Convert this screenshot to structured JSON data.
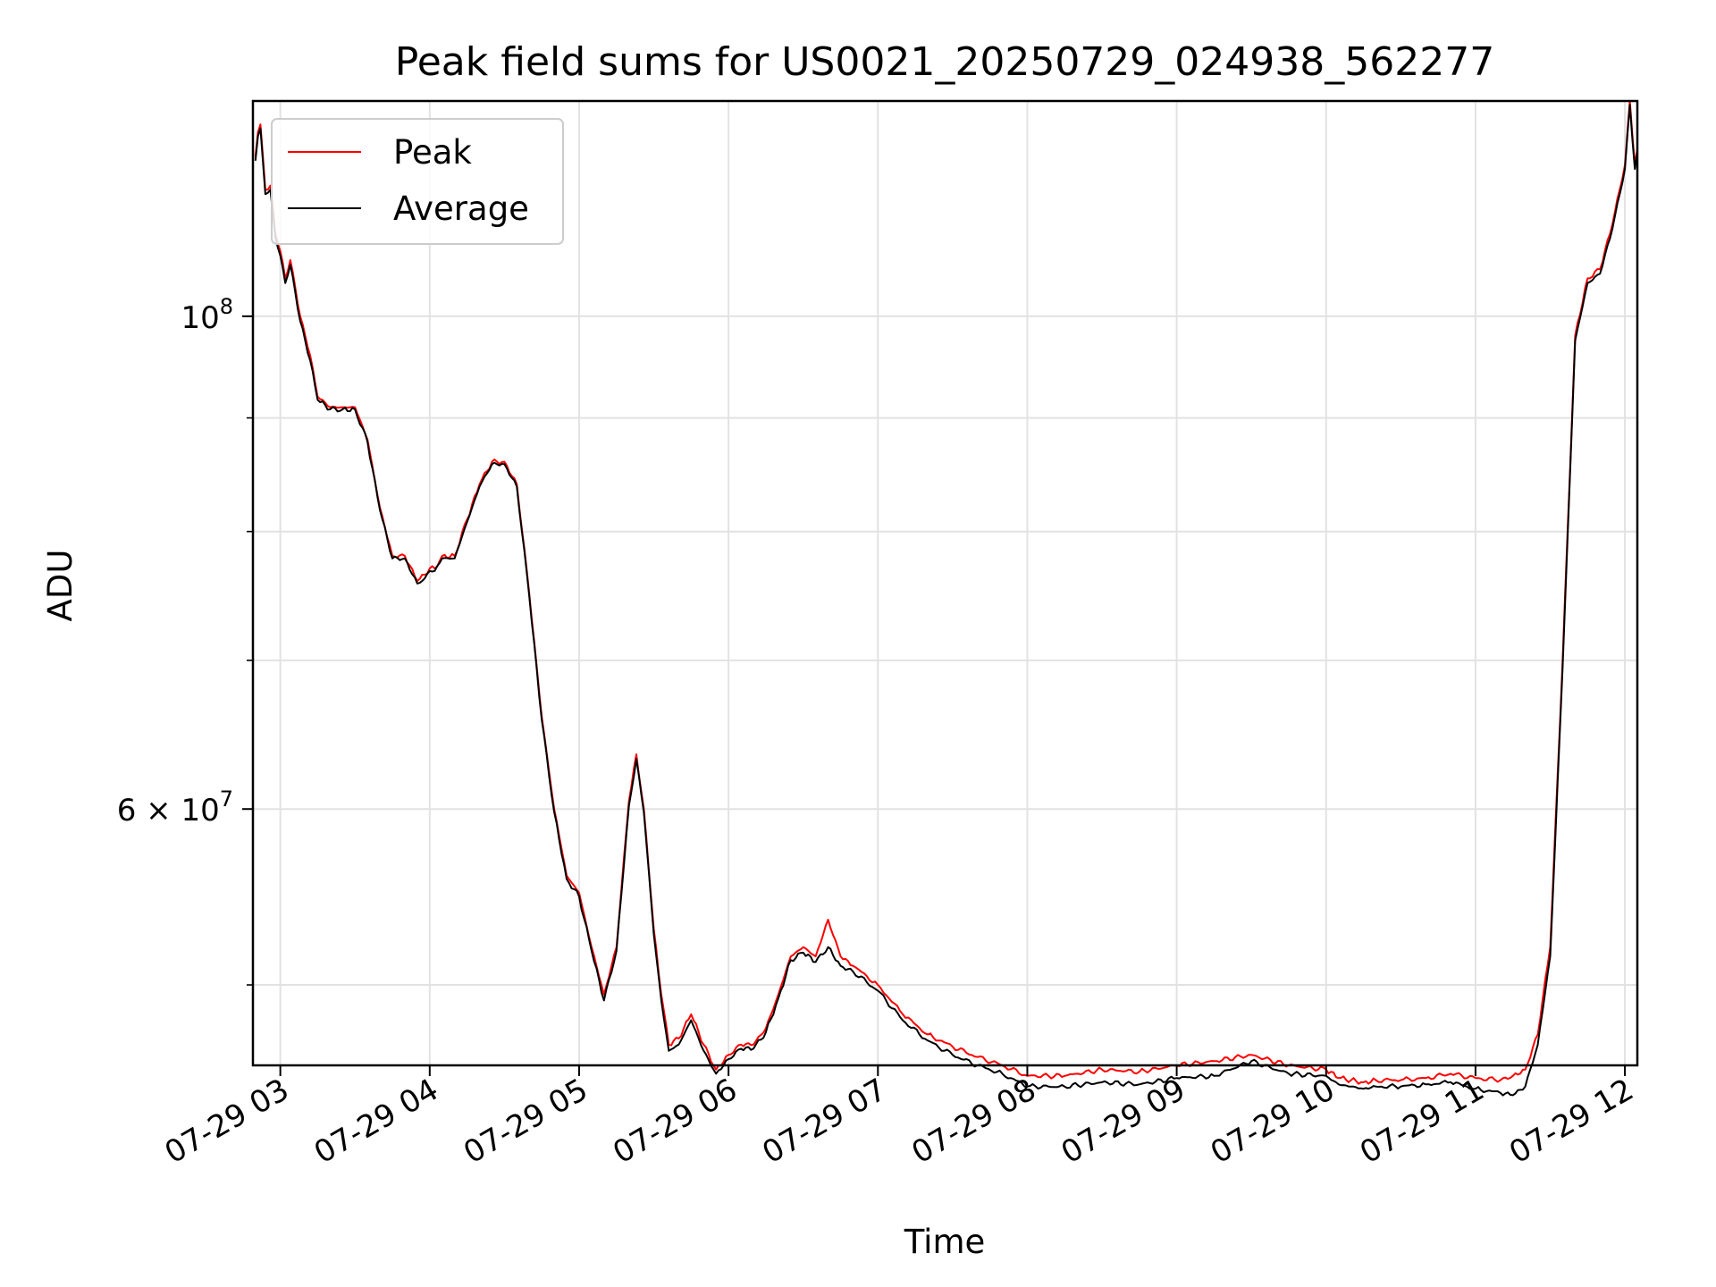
{
  "chart_data": {
    "type": "line",
    "title": "Peak field sums for US0021_20250729_024938_562277",
    "xlabel": "Time",
    "ylabel": "ADU",
    "y_scale": "log",
    "grid": true,
    "legend_position": "top-left",
    "x_ticks": [
      "07-29 03",
      "07-29 04",
      "07-29 05",
      "07-29 06",
      "07-29 07",
      "07-29 08",
      "07-29 09",
      "07-29 10",
      "07-29 11",
      "07-29 12"
    ],
    "y_major_ticks": [
      {
        "value": 100000000,
        "mantissa": "",
        "base": "10",
        "exp": "8"
      },
      {
        "value": 60000000,
        "mantissa": "6 × ",
        "base": "10",
        "exp": "7"
      }
    ],
    "y_minor_ticks": [
      50000000,
      70000000,
      80000000,
      90000000
    ],
    "xlim": [
      "2025-07-29 02:49",
      "2025-07-29 12:05"
    ],
    "ylim": [
      46000000,
      125000000
    ],
    "series": [
      {
        "name": "Peak",
        "color": "#ff0000",
        "x": [
          "2025-07-29 02:50",
          "2025-07-29 02:51",
          "2025-07-29 02:52",
          "2025-07-29 02:54",
          "2025-07-29 02:56",
          "2025-07-29 02:58",
          "2025-07-29 03:00",
          "2025-07-29 03:02",
          "2025-07-29 03:04",
          "2025-07-29 03:06",
          "2025-07-29 03:08",
          "2025-07-29 03:10",
          "2025-07-29 03:12",
          "2025-07-29 03:15",
          "2025-07-29 03:20",
          "2025-07-29 03:25",
          "2025-07-29 03:30",
          "2025-07-29 03:35",
          "2025-07-29 03:40",
          "2025-07-29 03:45",
          "2025-07-29 03:50",
          "2025-07-29 03:55",
          "2025-07-29 03:58",
          "2025-07-29 04:00",
          "2025-07-29 04:02",
          "2025-07-29 04:05",
          "2025-07-29 04:10",
          "2025-07-29 04:15",
          "2025-07-29 04:20",
          "2025-07-29 04:25",
          "2025-07-29 04:30",
          "2025-07-29 04:35",
          "2025-07-29 04:40",
          "2025-07-29 04:45",
          "2025-07-29 04:50",
          "2025-07-29 04:55",
          "2025-07-29 05:00",
          "2025-07-29 05:05",
          "2025-07-29 05:10",
          "2025-07-29 05:15",
          "2025-07-29 05:20",
          "2025-07-29 05:23",
          "2025-07-29 05:26",
          "2025-07-29 05:30",
          "2025-07-29 05:33",
          "2025-07-29 05:36",
          "2025-07-29 05:40",
          "2025-07-29 05:45",
          "2025-07-29 05:50",
          "2025-07-29 05:55",
          "2025-07-29 06:00",
          "2025-07-29 06:05",
          "2025-07-29 06:10",
          "2025-07-29 06:15",
          "2025-07-29 06:20",
          "2025-07-29 06:25",
          "2025-07-29 06:30",
          "2025-07-29 06:35",
          "2025-07-29 06:40",
          "2025-07-29 06:45",
          "2025-07-29 06:50",
          "2025-07-29 07:00",
          "2025-07-29 07:10",
          "2025-07-29 07:20",
          "2025-07-29 07:30",
          "2025-07-29 07:40",
          "2025-07-29 07:50",
          "2025-07-29 08:00",
          "2025-07-29 08:15",
          "2025-07-29 08:30",
          "2025-07-29 08:45",
          "2025-07-29 09:00",
          "2025-07-29 09:15",
          "2025-07-29 09:30",
          "2025-07-29 09:45",
          "2025-07-29 10:00",
          "2025-07-29 10:05",
          "2025-07-29 10:10",
          "2025-07-29 10:15",
          "2025-07-29 10:20",
          "2025-07-29 10:30",
          "2025-07-29 10:40",
          "2025-07-29 10:50",
          "2025-07-29 11:00",
          "2025-07-29 11:10",
          "2025-07-29 11:15",
          "2025-07-29 11:20",
          "2025-07-29 11:25",
          "2025-07-29 11:30",
          "2025-07-29 11:35",
          "2025-07-29 11:40",
          "2025-07-29 11:45",
          "2025-07-29 11:50",
          "2025-07-29 11:55",
          "2025-07-29 12:00",
          "2025-07-29 12:02",
          "2025-07-29 12:04",
          "2025-07-29 12:05"
        ],
        "y": [
          118000000,
          121000000,
          122000000,
          114000000,
          114500000,
          109000000,
          107000000,
          104000000,
          106000000,
          103000000,
          100000000,
          98000000,
          96000000,
          92000000,
          91000000,
          91000000,
          91000000,
          88000000,
          82000000,
          78000000,
          78000000,
          76000000,
          76500000,
          77000000,
          77000000,
          78000000,
          78000000,
          81000000,
          84000000,
          86000000,
          86000000,
          84000000,
          75000000,
          66000000,
          60000000,
          56000000,
          55000000,
          52000000,
          49500000,
          52000000,
          60500000,
          63500000,
          60000000,
          53000000,
          49500000,
          47000000,
          47300000,
          48500000,
          47000000,
          45800000,
          46500000,
          47000000,
          47000000,
          47800000,
          49500000,
          51500000,
          52000000,
          51500000,
          53500000,
          51500000,
          51000000,
          50000000,
          48500000,
          47500000,
          46900000,
          46400000,
          46000000,
          45500000,
          45500000,
          45800000,
          45700000,
          46000000,
          46200000,
          46500000,
          46000000,
          45800000,
          45400000,
          45300000,
          45200000,
          45300000,
          45300000,
          45400000,
          45600000,
          45400000,
          45300000,
          45500000,
          45800000,
          47500000,
          52000000,
          70000000,
          98000000,
          104000000,
          105000000,
          110000000,
          117000000,
          125000000,
          117000000,
          119000000
        ]
      },
      {
        "name": "Average",
        "color": "#000000",
        "x": [
          "2025-07-29 02:50",
          "2025-07-29 02:51",
          "2025-07-29 02:52",
          "2025-07-29 02:54",
          "2025-07-29 02:56",
          "2025-07-29 02:58",
          "2025-07-29 03:00",
          "2025-07-29 03:02",
          "2025-07-29 03:04",
          "2025-07-29 03:06",
          "2025-07-29 03:08",
          "2025-07-29 03:10",
          "2025-07-29 03:12",
          "2025-07-29 03:15",
          "2025-07-29 03:20",
          "2025-07-29 03:25",
          "2025-07-29 03:30",
          "2025-07-29 03:35",
          "2025-07-29 03:40",
          "2025-07-29 03:45",
          "2025-07-29 03:50",
          "2025-07-29 03:55",
          "2025-07-29 03:58",
          "2025-07-29 04:00",
          "2025-07-29 04:02",
          "2025-07-29 04:05",
          "2025-07-29 04:10",
          "2025-07-29 04:15",
          "2025-07-29 04:20",
          "2025-07-29 04:25",
          "2025-07-29 04:30",
          "2025-07-29 04:35",
          "2025-07-29 04:40",
          "2025-07-29 04:45",
          "2025-07-29 04:50",
          "2025-07-29 04:55",
          "2025-07-29 05:00",
          "2025-07-29 05:05",
          "2025-07-29 05:10",
          "2025-07-29 05:15",
          "2025-07-29 05:20",
          "2025-07-29 05:23",
          "2025-07-29 05:26",
          "2025-07-29 05:30",
          "2025-07-29 05:33",
          "2025-07-29 05:36",
          "2025-07-29 05:40",
          "2025-07-29 05:45",
          "2025-07-29 05:50",
          "2025-07-29 05:55",
          "2025-07-29 06:00",
          "2025-07-29 06:05",
          "2025-07-29 06:10",
          "2025-07-29 06:15",
          "2025-07-29 06:20",
          "2025-07-29 06:25",
          "2025-07-29 06:30",
          "2025-07-29 06:35",
          "2025-07-29 06:40",
          "2025-07-29 06:45",
          "2025-07-29 06:50",
          "2025-07-29 07:00",
          "2025-07-29 07:10",
          "2025-07-29 07:20",
          "2025-07-29 07:30",
          "2025-07-29 07:40",
          "2025-07-29 07:50",
          "2025-07-29 08:00",
          "2025-07-29 08:15",
          "2025-07-29 08:30",
          "2025-07-29 08:45",
          "2025-07-29 09:00",
          "2025-07-29 09:15",
          "2025-07-29 09:30",
          "2025-07-29 09:45",
          "2025-07-29 10:00",
          "2025-07-29 10:05",
          "2025-07-29 10:10",
          "2025-07-29 10:15",
          "2025-07-29 10:20",
          "2025-07-29 10:30",
          "2025-07-29 10:40",
          "2025-07-29 10:50",
          "2025-07-29 11:00",
          "2025-07-29 11:10",
          "2025-07-29 11:15",
          "2025-07-29 11:20",
          "2025-07-29 11:25",
          "2025-07-29 11:30",
          "2025-07-29 11:35",
          "2025-07-29 11:40",
          "2025-07-29 11:45",
          "2025-07-29 11:50",
          "2025-07-29 11:55",
          "2025-07-29 12:00",
          "2025-07-29 12:02",
          "2025-07-29 12:04",
          "2025-07-29 12:05"
        ],
        "y": [
          117500000,
          120500000,
          121500000,
          113500000,
          114000000,
          108500000,
          106500000,
          103500000,
          105500000,
          102500000,
          99500000,
          97500000,
          95500000,
          91700000,
          90800000,
          90800000,
          90800000,
          87800000,
          81800000,
          77800000,
          77800000,
          75800000,
          76200000,
          76800000,
          76800000,
          77800000,
          77800000,
          80800000,
          83800000,
          85800000,
          85800000,
          83800000,
          74800000,
          65800000,
          59800000,
          55800000,
          54800000,
          51800000,
          49200000,
          51800000,
          60200000,
          63200000,
          59800000,
          52700000,
          49200000,
          46700000,
          47000000,
          48200000,
          46700000,
          45600000,
          46300000,
          46800000,
          46800000,
          47600000,
          49300000,
          51300000,
          51700000,
          51200000,
          52000000,
          51000000,
          50700000,
          49700000,
          48200000,
          47200000,
          46500000,
          46000000,
          45600000,
          45000000,
          45000000,
          45200000,
          45100000,
          45400000,
          45500000,
          46200000,
          45600000,
          45500000,
          45100000,
          45000000,
          44900000,
          45000000,
          45000000,
          45100000,
          45200000,
          44900000,
          44700000,
          44600000,
          45000000,
          47000000,
          51500000,
          69500000,
          97500000,
          103500000,
          104500000,
          109500000,
          116500000,
          124500000,
          116500000,
          118500000
        ]
      }
    ]
  }
}
